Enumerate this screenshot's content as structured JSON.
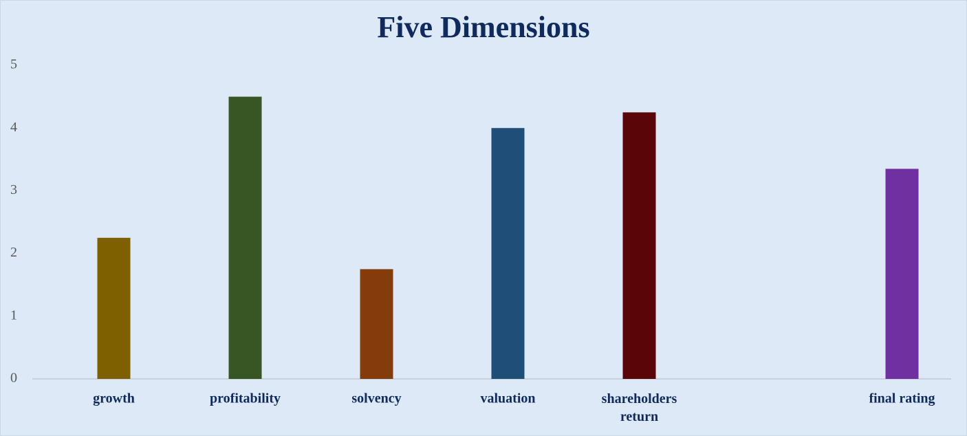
{
  "chart_data": {
    "type": "bar",
    "title": "Five Dimensions",
    "categories": [
      "growth",
      "profitability",
      "solvency",
      "valuation",
      "shareholders return",
      null,
      "final rating"
    ],
    "values": [
      2.25,
      4.5,
      1.75,
      4,
      4.25,
      null,
      3.35
    ],
    "colors": [
      "#7f6000",
      "#375623",
      "#843c0c",
      "#1f4e79",
      "#5a0508",
      null,
      "#7030a0"
    ],
    "ylim": [
      0,
      5
    ],
    "yticks": [
      0,
      1,
      2,
      3,
      4,
      5
    ],
    "grid": false
  }
}
